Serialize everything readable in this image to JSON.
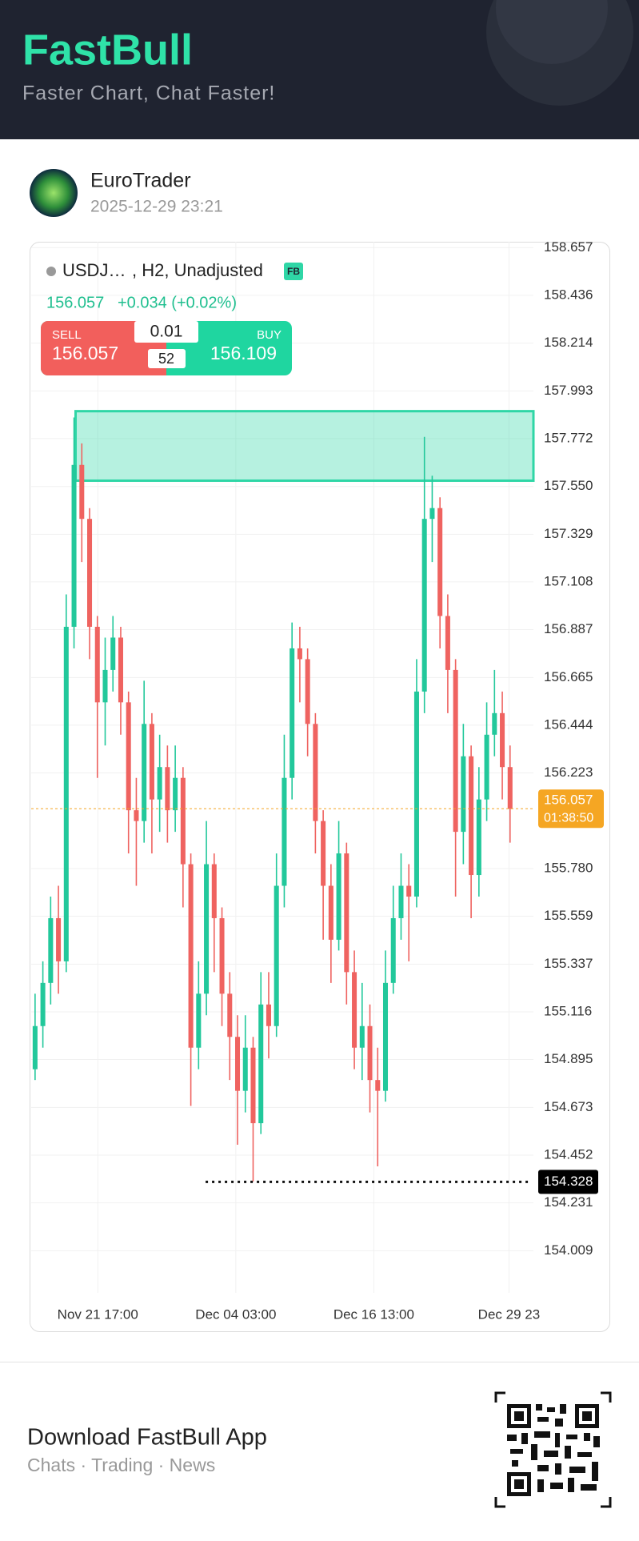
{
  "header": {
    "brand": "FastBull",
    "tagline": "Faster Chart, Chat Faster!"
  },
  "post": {
    "author": "EuroTrader",
    "time": "2025-12-29 23:21"
  },
  "quote": {
    "symbol": "USDJ…",
    "params": ", H2, Unadjusted",
    "badge": "FB",
    "price": "156.057",
    "change": "+0.034 (+0.02%)",
    "sell_label": "SELL",
    "sell": "156.057",
    "lot": "0.01",
    "spread": "52",
    "buy_label": "BUY",
    "buy": "156.109"
  },
  "chart_data": {
    "type": "candlestick",
    "x": [
      0,
      1,
      2,
      3,
      4,
      5,
      6,
      7,
      8,
      9,
      10,
      11,
      12,
      13,
      14,
      15,
      16,
      17,
      18,
      19,
      20,
      21,
      22,
      23,
      24,
      25,
      26,
      27,
      28,
      29,
      30,
      31,
      32,
      33,
      34,
      35,
      36,
      37,
      38,
      39,
      40,
      41,
      42,
      43,
      44,
      45,
      46,
      47,
      48,
      49,
      50,
      51,
      52,
      53,
      54,
      55,
      56,
      57,
      58,
      59,
      60,
      61
    ],
    "open": [
      154.85,
      155.05,
      155.25,
      155.55,
      155.35,
      156.9,
      157.65,
      157.4,
      156.9,
      156.55,
      156.7,
      156.85,
      156.55,
      156.05,
      156.0,
      156.45,
      156.1,
      156.25,
      156.05,
      156.2,
      155.8,
      154.95,
      155.2,
      155.8,
      155.55,
      155.2,
      155.0,
      154.75,
      154.95,
      154.6,
      155.15,
      155.05,
      155.7,
      156.2,
      156.8,
      156.75,
      156.45,
      156.0,
      155.7,
      155.45,
      155.85,
      155.3,
      154.95,
      155.05,
      154.8,
      154.75,
      155.25,
      155.55,
      155.7,
      155.65,
      156.6,
      157.4,
      157.45,
      156.95,
      156.7,
      155.95,
      156.3,
      155.75,
      156.1,
      156.4,
      156.5,
      156.25
    ],
    "high": [
      155.2,
      155.35,
      155.65,
      155.7,
      157.05,
      157.87,
      157.75,
      157.45,
      156.95,
      156.85,
      156.95,
      156.9,
      156.6,
      156.2,
      156.65,
      156.5,
      156.4,
      156.35,
      156.35,
      156.25,
      155.85,
      155.35,
      156.0,
      155.85,
      155.6,
      155.3,
      155.1,
      155.1,
      155.0,
      155.3,
      155.3,
      155.85,
      156.4,
      156.92,
      156.9,
      156.8,
      156.5,
      156.05,
      155.8,
      156.0,
      155.9,
      155.4,
      155.25,
      155.15,
      154.95,
      155.4,
      155.7,
      155.85,
      155.8,
      156.75,
      157.78,
      157.6,
      157.5,
      157.05,
      156.75,
      156.45,
      156.35,
      156.25,
      156.55,
      156.7,
      156.6,
      156.35
    ],
    "low": [
      154.8,
      154.95,
      155.15,
      155.2,
      155.3,
      156.8,
      157.2,
      156.75,
      156.2,
      156.35,
      156.6,
      156.4,
      155.85,
      155.7,
      155.9,
      155.85,
      155.95,
      155.9,
      155.95,
      155.6,
      154.68,
      154.85,
      155.1,
      155.3,
      155.05,
      154.8,
      154.5,
      154.65,
      154.33,
      154.55,
      154.9,
      155.0,
      155.6,
      156.1,
      156.55,
      156.3,
      155.85,
      155.45,
      155.25,
      155.4,
      155.15,
      154.85,
      154.8,
      154.65,
      154.4,
      154.7,
      155.2,
      155.45,
      155.35,
      155.6,
      156.5,
      157.2,
      156.8,
      156.5,
      155.65,
      155.8,
      155.55,
      155.65,
      156.0,
      156.3,
      156.1,
      155.9
    ],
    "close": [
      155.05,
      155.25,
      155.55,
      155.35,
      156.9,
      157.65,
      157.4,
      156.9,
      156.55,
      156.7,
      156.85,
      156.55,
      156.05,
      156.0,
      156.45,
      156.1,
      156.25,
      156.05,
      156.2,
      155.8,
      154.95,
      155.2,
      155.8,
      155.55,
      155.2,
      155.0,
      154.75,
      154.95,
      154.6,
      155.15,
      155.05,
      155.7,
      156.2,
      156.8,
      156.75,
      156.45,
      156.0,
      155.7,
      155.45,
      155.85,
      155.3,
      154.95,
      155.05,
      154.8,
      154.75,
      155.25,
      155.55,
      155.7,
      155.65,
      156.6,
      157.4,
      157.45,
      156.95,
      156.7,
      155.95,
      156.3,
      155.75,
      156.1,
      156.4,
      156.5,
      156.25,
      156.057
    ],
    "up_color": "#22c89b",
    "down_color": "#ef6360",
    "xlim": [
      -0.5,
      64
    ],
    "xticks": [
      {
        "value": 8.05,
        "label": "Nov 21 17:00"
      },
      {
        "value": 25.78,
        "label": "Dec 04 03:00"
      },
      {
        "value": 43.5,
        "label": "Dec 16 13:00"
      },
      {
        "value": 60.86,
        "label": "Dec 29 23"
      }
    ],
    "ylim": [
      153.814,
      158.684
    ],
    "yticks": [
      158.657,
      158.436,
      158.214,
      157.993,
      157.772,
      {
        "value": 157.55,
        "label": "157.550"
      },
      157.329,
      157.108,
      156.887,
      156.665,
      156.444,
      156.223,
      {
        "value": 155.78,
        "label": "155.780"
      },
      155.559,
      155.337,
      155.116,
      154.895,
      154.673,
      154.452,
      154.231,
      154.009
    ],
    "grid": true,
    "zone": {
      "x": [
        5.2,
        64
      ],
      "y": [
        157.577,
        157.899
      ],
      "color": "#2fd6a6"
    },
    "last_price": {
      "value": 156.057,
      "countdown": "01:38:50",
      "color": "#f5a623"
    },
    "low_marker": {
      "value": 154.328,
      "x": [
        21.9,
        63.4
      ]
    }
  },
  "footer": {
    "title": "Download FastBull App",
    "subtitle": "Chats · Trading · News"
  }
}
